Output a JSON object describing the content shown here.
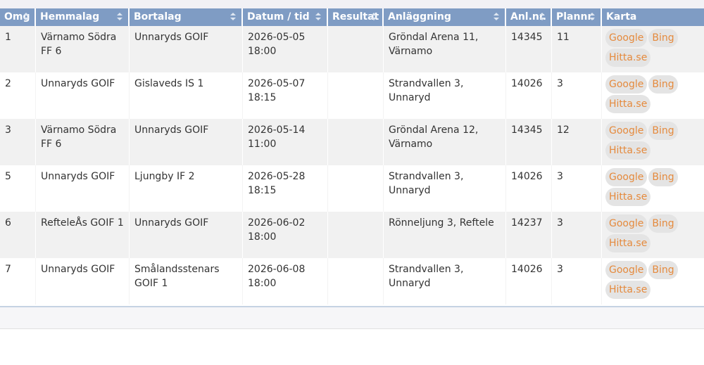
{
  "table": {
    "headers": [
      {
        "label": "Omg",
        "sortable": true
      },
      {
        "label": "Hemmalag",
        "sortable": true
      },
      {
        "label": "Bortalag",
        "sortable": true
      },
      {
        "label": "Datum / tid",
        "sortable": true
      },
      {
        "label": "Resultat",
        "sortable": true
      },
      {
        "label": "Anläggning",
        "sortable": true
      },
      {
        "label": "Anl.nr.",
        "sortable": true
      },
      {
        "label": "Plannr.",
        "sortable": true
      },
      {
        "label": "Karta",
        "sortable": false
      }
    ],
    "rows": [
      {
        "omg": "1",
        "home": "Värnamo Södra FF 6",
        "away": "Unnaryds GOIF",
        "date": "2026-05-05",
        "time": "18:00",
        "result": "",
        "venue": "Gröndal Arena 11, Värnamo",
        "anl": "14345",
        "plan": "11"
      },
      {
        "omg": "2",
        "home": "Unnaryds GOIF",
        "away": "Gislaveds IS 1",
        "date": "2026-05-07",
        "time": "18:15",
        "result": "",
        "venue": "Strandvallen 3, Unnaryd",
        "anl": "14026",
        "plan": "3"
      },
      {
        "omg": "3",
        "home": "Värnamo Södra FF 6",
        "away": "Unnaryds GOIF",
        "date": "2026-05-14",
        "time": "11:00",
        "result": "",
        "venue": "Gröndal Arena 12, Värnamo",
        "anl": "14345",
        "plan": "12"
      },
      {
        "omg": "5",
        "home": "Unnaryds GOIF",
        "away": "Ljungby IF 2",
        "date": "2026-05-28",
        "time": "18:15",
        "result": "",
        "venue": "Strandvallen 3, Unnaryd",
        "anl": "14026",
        "plan": "3"
      },
      {
        "omg": "6",
        "home": "RefteleÅs GOIF 1",
        "away": "Unnaryds GOIF",
        "date": "2026-06-02",
        "time": "18:00",
        "result": "",
        "venue": "Rönneljung 3, Reftele",
        "anl": "14237",
        "plan": "3"
      },
      {
        "omg": "7",
        "home": "Unnaryds GOIF",
        "away": "Smålandsstenars GOIF 1",
        "date": "2026-06-08",
        "time": "18:00",
        "result": "",
        "venue": "Strandvallen 3, Unnaryd",
        "anl": "14026",
        "plan": "3"
      }
    ]
  },
  "map_links": {
    "google": "Google",
    "bing": "Bing",
    "hitta": "Hitta.se"
  },
  "colors": {
    "header_bg": "#7f9cc4",
    "link": "#e58a3d",
    "row_alt": "#f1f1f1"
  }
}
